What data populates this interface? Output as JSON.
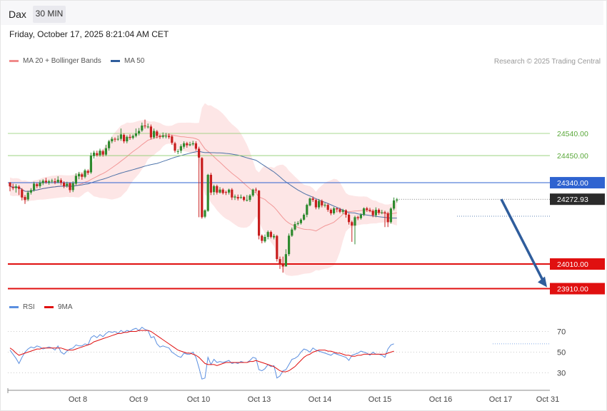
{
  "header": {
    "symbol": "Dax",
    "interval": "30 MIN"
  },
  "datetime": "Friday, October 17, 2025 8:21:04 AM CET",
  "legend_main": [
    {
      "label": "MA 20 + Bollinger Bands",
      "color": "#f08a8a"
    },
    {
      "label": "MA 50",
      "color": "#2f5d9c"
    }
  ],
  "legend_rsi": [
    {
      "label": "RSI",
      "color": "#5b8fe0"
    },
    {
      "label": "9MA",
      "color": "#e01010"
    }
  ],
  "credit": "Research © 2025 Trading Central",
  "colors": {
    "up": "#2f8a2f",
    "down": "#c81e1e",
    "support": "#e01010",
    "resistance_line": "#8ccc6c",
    "pivot": "#2f63d0",
    "arrow": "#2f5d9c",
    "band_fill": "#fde3e3"
  },
  "chart_data": [
    {
      "type": "candlestick",
      "x_labels": [
        "Oct 8",
        "Oct 9",
        "Oct 10",
        "Oct 13",
        "Oct 14",
        "Oct 15",
        "Oct 16",
        "Oct 17",
        "Oct 31"
      ],
      "ylim": [
        23900,
        24600
      ],
      "candles": [
        [
          24340,
          24325,
          24343,
          24305
        ],
        [
          24322,
          24318,
          24336,
          24310
        ],
        [
          24318,
          24325,
          24334,
          24300
        ],
        [
          24324,
          24315,
          24330,
          24290
        ],
        [
          24312,
          24280,
          24318,
          24268
        ],
        [
          24282,
          24270,
          24290,
          24254
        ],
        [
          24272,
          24300,
          24308,
          24266
        ],
        [
          24300,
          24310,
          24318,
          24292
        ],
        [
          24310,
          24336,
          24344,
          24304
        ],
        [
          24334,
          24326,
          24340,
          24318
        ],
        [
          24326,
          24340,
          24350,
          24318
        ],
        [
          24338,
          24348,
          24354,
          24330
        ],
        [
          24348,
          24342,
          24360,
          24336
        ],
        [
          24340,
          24346,
          24352,
          24332
        ],
        [
          24345,
          24348,
          24356,
          24338
        ],
        [
          24346,
          24342,
          24358,
          24334
        ],
        [
          24342,
          24352,
          24366,
          24338
        ],
        [
          24350,
          24340,
          24358,
          24330
        ],
        [
          24340,
          24326,
          24346,
          24318
        ],
        [
          24328,
          24336,
          24344,
          24320
        ],
        [
          24338,
          24310,
          24342,
          24300
        ],
        [
          24310,
          24338,
          24346,
          24302
        ],
        [
          24336,
          24368,
          24378,
          24330
        ],
        [
          24366,
          24376,
          24384,
          24354
        ],
        [
          24374,
          24364,
          24380,
          24352
        ],
        [
          24364,
          24390,
          24396,
          24358
        ],
        [
          24388,
          24380,
          24394,
          24372
        ],
        [
          24382,
          24450,
          24462,
          24376
        ],
        [
          24448,
          24462,
          24470,
          24438
        ],
        [
          24460,
          24452,
          24470,
          24446
        ],
        [
          24452,
          24470,
          24478,
          24446
        ],
        [
          24468,
          24454,
          24474,
          24446
        ],
        [
          24454,
          24480,
          24494,
          24448
        ],
        [
          24480,
          24508,
          24514,
          24470
        ],
        [
          24508,
          24518,
          24526,
          24500
        ],
        [
          24518,
          24516,
          24524,
          24506
        ],
        [
          24516,
          24518,
          24532,
          24510
        ],
        [
          24518,
          24536,
          24560,
          24510
        ],
        [
          24534,
          24508,
          24540,
          24500
        ],
        [
          24508,
          24526,
          24532,
          24500
        ],
        [
          24526,
          24522,
          24536,
          24514
        ],
        [
          24522,
          24530,
          24536,
          24516
        ],
        [
          24530,
          24540,
          24560,
          24524
        ],
        [
          24540,
          24550,
          24562,
          24532
        ],
        [
          24552,
          24572,
          24584,
          24546
        ],
        [
          24572,
          24570,
          24596,
          24560
        ],
        [
          24568,
          24568,
          24580,
          24560
        ],
        [
          24568,
          24524,
          24576,
          24516
        ],
        [
          24524,
          24550,
          24560,
          24518
        ],
        [
          24548,
          24530,
          24554,
          24520
        ],
        [
          24530,
          24526,
          24536,
          24518
        ],
        [
          24526,
          24532,
          24544,
          24520
        ],
        [
          24530,
          24530,
          24542,
          24520
        ],
        [
          24530,
          24525,
          24540,
          24518
        ],
        [
          24528,
          24502,
          24534,
          24494
        ],
        [
          24500,
          24470,
          24506,
          24462
        ],
        [
          24468,
          24468,
          24476,
          24456
        ],
        [
          24470,
          24488,
          24496,
          24460
        ],
        [
          24486,
          24500,
          24508,
          24478
        ],
        [
          24500,
          24492,
          24506,
          24482
        ],
        [
          24492,
          24496,
          24506,
          24488
        ],
        [
          24496,
          24500,
          24510,
          24490
        ],
        [
          24500,
          24478,
          24508,
          24470
        ],
        [
          24478,
          24442,
          24486,
          24200
        ],
        [
          24440,
          24200,
          24444,
          24194
        ],
        [
          24202,
          24228,
          24232,
          24196
        ],
        [
          24226,
          24372,
          24376,
          24222
        ],
        [
          24372,
          24300,
          24380,
          24290
        ],
        [
          24302,
          24326,
          24332,
          24290
        ],
        [
          24326,
          24300,
          24332,
          24292
        ],
        [
          24300,
          24312,
          24322,
          24296
        ],
        [
          24312,
          24298,
          24318,
          24292
        ],
        [
          24302,
          24300,
          24308,
          24290
        ],
        [
          24300,
          24312,
          24316,
          24292
        ],
        [
          24312,
          24280,
          24318,
          24270
        ],
        [
          24280,
          24284,
          24292,
          24270
        ],
        [
          24282,
          24276,
          24292,
          24268
        ],
        [
          24280,
          24282,
          24292,
          24274
        ],
        [
          24282,
          24270,
          24286,
          24264
        ],
        [
          24270,
          24270,
          24290,
          24264
        ],
        [
          24270,
          24288,
          24294,
          24262
        ],
        [
          24288,
          24312,
          24316,
          24282
        ],
        [
          24312,
          24310,
          24320,
          24300
        ],
        [
          24308,
          24125,
          24310,
          24110
        ],
        [
          24125,
          24104,
          24130,
          24094
        ],
        [
          24102,
          24120,
          24130,
          24096
        ],
        [
          24120,
          24140,
          24146,
          24110
        ],
        [
          24140,
          24120,
          24146,
          24114
        ],
        [
          24118,
          24124,
          24132,
          24110
        ],
        [
          24124,
          24030,
          24128,
          24020
        ],
        [
          24030,
          24010,
          24040,
          23990
        ],
        [
          24010,
          24000,
          24040,
          23975
        ],
        [
          24000,
          24050,
          24070,
          24000
        ],
        [
          24050,
          24125,
          24134,
          24042
        ],
        [
          24125,
          24150,
          24158,
          24120
        ],
        [
          24150,
          24172,
          24182,
          24145
        ],
        [
          24172,
          24176,
          24184,
          24166
        ],
        [
          24176,
          24190,
          24196,
          24170
        ],
        [
          24190,
          24210,
          24216,
          24186
        ],
        [
          24210,
          24250,
          24255,
          24200
        ],
        [
          24248,
          24276,
          24280,
          24244
        ],
        [
          24276,
          24270,
          24284,
          24262
        ],
        [
          24270,
          24240,
          24274,
          24232
        ],
        [
          24240,
          24266,
          24274,
          24232
        ],
        [
          24266,
          24248,
          24272,
          24240
        ],
        [
          24248,
          24250,
          24258,
          24240
        ],
        [
          24250,
          24230,
          24256,
          24222
        ],
        [
          24230,
          24216,
          24236,
          24208
        ],
        [
          24216,
          24236,
          24242,
          24210
        ],
        [
          24236,
          24232,
          24240,
          24220
        ],
        [
          24232,
          24222,
          24238,
          24216
        ],
        [
          24222,
          24228,
          24234,
          24214
        ],
        [
          24228,
          24210,
          24232,
          24198
        ],
        [
          24210,
          24180,
          24216,
          24170
        ],
        [
          24180,
          24166,
          24186,
          24100
        ],
        [
          24166,
          24200,
          24206,
          24090
        ],
        [
          24200,
          24196,
          24206,
          24188
        ],
        [
          24196,
          24210,
          24216,
          24190
        ],
        [
          24210,
          24236,
          24240,
          24204
        ],
        [
          24236,
          24230,
          24242,
          24222
        ],
        [
          24230,
          24226,
          24238,
          24220
        ],
        [
          24226,
          24208,
          24232,
          24200
        ],
        [
          24208,
          24230,
          24240,
          24200
        ],
        [
          24230,
          24218,
          24236,
          24210
        ],
        [
          24218,
          24220,
          24230,
          24212
        ],
        [
          24220,
          24216,
          24226,
          24160
        ],
        [
          24216,
          24180,
          24222,
          24160
        ],
        [
          24180,
          24235,
          24240,
          24174
        ],
        [
          24235,
          24268,
          24280,
          24228
        ],
        [
          24268,
          24272,
          24278,
          24260
        ]
      ],
      "levels": [
        {
          "value": 24540,
          "label": "24540.00",
          "kind": "resistance"
        },
        {
          "value": 24450,
          "label": "24450.00",
          "kind": "resistance"
        },
        {
          "value": 24340,
          "label": "24340.00",
          "kind": "pivot"
        },
        {
          "value": 24010,
          "label": "24010.00",
          "kind": "support"
        },
        {
          "value": 23910,
          "label": "23910.00",
          "kind": "support"
        }
      ],
      "last_price": {
        "value": 24272.93,
        "label": "24272.93"
      },
      "forecast_arrow": {
        "from": 24272.93,
        "to": 23910
      }
    },
    {
      "type": "line",
      "ylim": [
        20,
        80
      ],
      "ticks": [
        {
          "value": 70,
          "label": "70"
        },
        {
          "value": 50,
          "label": "50"
        },
        {
          "value": 30,
          "label": "30"
        }
      ],
      "series": [
        {
          "name": "RSI",
          "color": "#5b8fe0"
        },
        {
          "name": "9MA",
          "color": "#e01010"
        }
      ],
      "rsi": [
        52,
        48,
        44,
        39,
        45,
        50,
        53,
        55,
        54,
        56,
        55,
        53,
        54,
        55,
        54,
        52,
        56,
        50,
        48,
        51,
        53,
        54,
        57,
        56,
        56,
        58,
        57,
        64,
        66,
        64,
        67,
        65,
        68,
        70,
        69,
        70,
        68,
        71,
        69,
        71,
        70,
        72,
        73,
        71,
        74,
        72,
        71,
        64,
        65,
        58,
        55,
        56,
        55,
        54,
        50,
        48,
        46,
        45,
        49,
        48,
        48,
        50,
        45,
        35,
        24,
        25,
        45,
        38,
        43,
        40,
        41,
        40,
        41,
        42,
        39,
        40,
        39,
        41,
        40,
        40,
        42,
        45,
        44,
        33,
        32,
        34,
        38,
        36,
        37,
        25,
        27,
        32,
        33,
        38,
        43,
        44,
        46,
        50,
        53,
        52,
        50,
        54,
        52,
        51,
        50,
        49,
        48,
        47,
        49,
        48,
        47,
        46,
        45,
        42,
        47,
        48,
        49,
        51,
        50,
        49,
        47,
        50,
        48,
        48,
        47,
        45,
        53,
        57,
        58
      ],
      "ma9": [
        54,
        52,
        49,
        47,
        48,
        49,
        50,
        51,
        52,
        53,
        53,
        54,
        54,
        54,
        54,
        54,
        54,
        54,
        53,
        52,
        52,
        52,
        53,
        54,
        55,
        56,
        57,
        58,
        60,
        61,
        62,
        63,
        64,
        65,
        66,
        67,
        68,
        68,
        69,
        69,
        70,
        70,
        70,
        71,
        71,
        71,
        71,
        70,
        68,
        66,
        64,
        62,
        60,
        58,
        56,
        54,
        52,
        51,
        50,
        49,
        49,
        48,
        47,
        45,
        42,
        39,
        38,
        38,
        38,
        37,
        38,
        39,
        40,
        40,
        40,
        40,
        40,
        40,
        40,
        40,
        41,
        41,
        42,
        41,
        40,
        39,
        38,
        37,
        36,
        34,
        32,
        31,
        31,
        32,
        34,
        36,
        39,
        42,
        45,
        47,
        48,
        50,
        51,
        52,
        52,
        52,
        51,
        51,
        50,
        49,
        49,
        48,
        47,
        47,
        46,
        46,
        47,
        47,
        48,
        48,
        48,
        48,
        48,
        48,
        48,
        48,
        49,
        50,
        51
      ]
    }
  ]
}
